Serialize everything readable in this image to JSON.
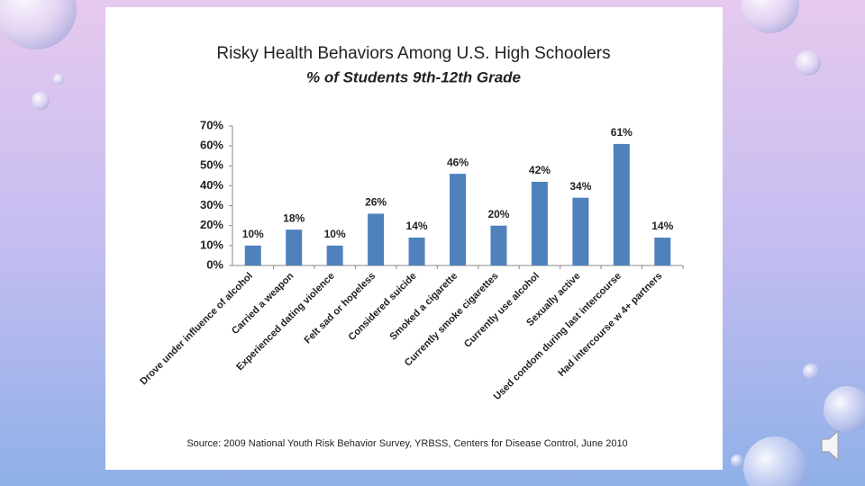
{
  "chart_data": {
    "type": "bar",
    "title": "Risky Health Behaviors Among U.S. High Schoolers",
    "subtitle": "% of Students 9th-12th Grade",
    "categories": [
      "Drove under influence of alcohol",
      "Carried a weapon",
      "Experienced dating violence",
      "Felt sad or hopeless",
      "Considered suicide",
      "Smoked a cigarette",
      "Currently smoke cigarettes",
      "Currently use alcohol",
      "Sexually active",
      "Used condom during last intercourse",
      "Had intercourse w 4+ partners"
    ],
    "values": [
      10,
      18,
      10,
      26,
      14,
      46,
      20,
      42,
      34,
      61,
      14
    ],
    "value_labels": [
      "10%",
      "18%",
      "10%",
      "26%",
      "14%",
      "46%",
      "20%",
      "42%",
      "34%",
      "61%",
      "14%"
    ],
    "color": "#4f81bd",
    "ylim": [
      0,
      70
    ],
    "yticks": [
      {
        "value": 0,
        "label": "0%"
      },
      {
        "value": 10,
        "label": "10%"
      },
      {
        "value": 20,
        "label": "20%"
      },
      {
        "value": 30,
        "label": "30%"
      },
      {
        "value": 40,
        "label": "40%"
      },
      {
        "value": 50,
        "label": "50%"
      },
      {
        "value": 60,
        "label": "60%"
      },
      {
        "value": 70,
        "label": "70%"
      }
    ],
    "grid": false,
    "source": "Source: 2009 National Youth Risk Behavior Survey, YRBSS, Centers for Disease Control, June 2010"
  }
}
